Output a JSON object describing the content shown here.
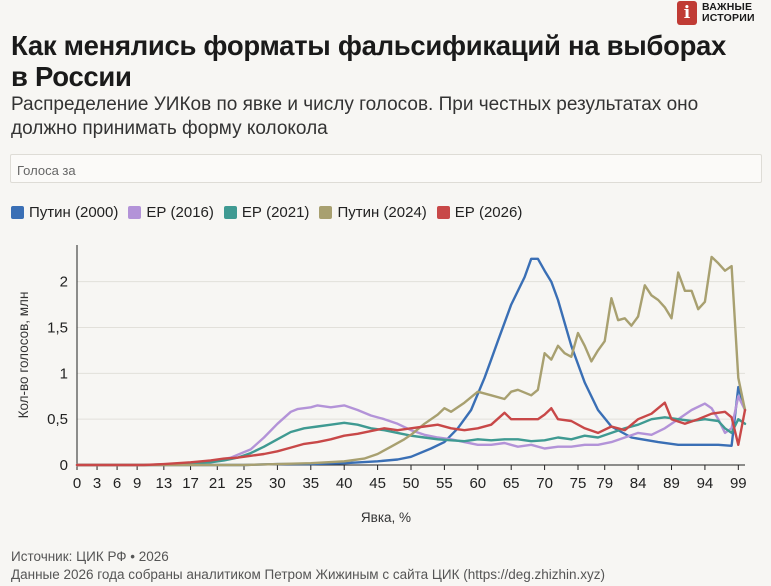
{
  "logo": {
    "mark": "i",
    "line1": "ВАЖНЫЕ",
    "line2": "ИСТОРИИ"
  },
  "title": "Как менялись форматы фальсификаций на выборах в России",
  "subtitle": "Распределение УИКов по явке и числу голосов. При честных результатах оно должно принимать форму колокола",
  "select": {
    "value": "Голоса за"
  },
  "source": {
    "line1": "Источник: ЦИК РФ • 2026",
    "line2": "Данные 2026 года собраны аналитиком Петром Жижиным с сайта ЦИК (https://deg.zhizhin.xyz)"
  },
  "chart_data": {
    "type": "line",
    "title": "",
    "xlabel": "Явка, %",
    "ylabel": "Кол-во голосов, млн",
    "xlim": [
      0,
      100
    ],
    "ylim": [
      0,
      2.4
    ],
    "xticks": [
      0,
      3,
      6,
      9,
      13,
      17,
      21,
      25,
      30,
      35,
      40,
      45,
      50,
      55,
      60,
      65,
      70,
      75,
      79,
      84,
      89,
      94,
      99
    ],
    "xtick_labels": [
      "0",
      "3",
      "6",
      "9",
      "13",
      "17",
      "21",
      "25",
      "30",
      "35",
      "40",
      "45",
      "50",
      "55",
      "60",
      "65",
      "70",
      "75",
      "79",
      "84",
      "89",
      "94",
      "99"
    ],
    "yticks": [
      0,
      0.5,
      1,
      1.5,
      2
    ],
    "ytick_labels": [
      "0",
      "0,5",
      "1",
      "1,5",
      "2"
    ],
    "grid": "horizontal",
    "legend": "top-left",
    "series": [
      {
        "name": "Путин (2000)",
        "color": "#3a6fb5",
        "points": [
          [
            0,
            0
          ],
          [
            10,
            0
          ],
          [
            20,
            0
          ],
          [
            25,
            0
          ],
          [
            30,
            0.01
          ],
          [
            35,
            0.01
          ],
          [
            40,
            0.02
          ],
          [
            45,
            0.04
          ],
          [
            48,
            0.06
          ],
          [
            50,
            0.09
          ],
          [
            53,
            0.18
          ],
          [
            55,
            0.25
          ],
          [
            57,
            0.4
          ],
          [
            59,
            0.6
          ],
          [
            61,
            0.95
          ],
          [
            62,
            1.15
          ],
          [
            63,
            1.35
          ],
          [
            65,
            1.75
          ],
          [
            67,
            2.05
          ],
          [
            68,
            2.25
          ],
          [
            69,
            2.25
          ],
          [
            70,
            2.12
          ],
          [
            71,
            2.0
          ],
          [
            72,
            1.8
          ],
          [
            74,
            1.3
          ],
          [
            76,
            0.9
          ],
          [
            78,
            0.6
          ],
          [
            80,
            0.42
          ],
          [
            83,
            0.3
          ],
          [
            87,
            0.25
          ],
          [
            90,
            0.22
          ],
          [
            93,
            0.22
          ],
          [
            96,
            0.22
          ],
          [
            98,
            0.21
          ],
          [
            99,
            0.85
          ],
          [
            100,
            0.6
          ]
        ]
      },
      {
        "name": "ЕР (2016)",
        "color": "#b393d8",
        "points": [
          [
            0,
            0
          ],
          [
            10,
            0
          ],
          [
            15,
            0.01
          ],
          [
            18,
            0.02
          ],
          [
            20,
            0.04
          ],
          [
            23,
            0.08
          ],
          [
            26,
            0.17
          ],
          [
            28,
            0.3
          ],
          [
            30,
            0.45
          ],
          [
            32,
            0.58
          ],
          [
            33,
            0.61
          ],
          [
            35,
            0.63
          ],
          [
            36,
            0.65
          ],
          [
            38,
            0.63
          ],
          [
            40,
            0.65
          ],
          [
            42,
            0.6
          ],
          [
            44,
            0.54
          ],
          [
            46,
            0.5
          ],
          [
            48,
            0.45
          ],
          [
            50,
            0.38
          ],
          [
            52,
            0.33
          ],
          [
            54,
            0.3
          ],
          [
            56,
            0.28
          ],
          [
            58,
            0.25
          ],
          [
            60,
            0.22
          ],
          [
            62,
            0.22
          ],
          [
            64,
            0.24
          ],
          [
            66,
            0.2
          ],
          [
            68,
            0.22
          ],
          [
            70,
            0.18
          ],
          [
            72,
            0.2
          ],
          [
            74,
            0.2
          ],
          [
            76,
            0.22
          ],
          [
            78,
            0.22
          ],
          [
            80,
            0.25
          ],
          [
            82,
            0.3
          ],
          [
            84,
            0.35
          ],
          [
            86,
            0.33
          ],
          [
            88,
            0.4
          ],
          [
            90,
            0.5
          ],
          [
            92,
            0.6
          ],
          [
            94,
            0.67
          ],
          [
            95,
            0.62
          ],
          [
            96,
            0.5
          ],
          [
            97,
            0.35
          ],
          [
            98,
            0.4
          ],
          [
            99,
            0.75
          ],
          [
            100,
            0.6
          ]
        ]
      },
      {
        "name": "ЕР (2021)",
        "color": "#3f9a92",
        "points": [
          [
            0,
            0
          ],
          [
            10,
            0
          ],
          [
            15,
            0.01
          ],
          [
            18,
            0.02
          ],
          [
            20,
            0.03
          ],
          [
            22,
            0.05
          ],
          [
            24,
            0.08
          ],
          [
            26,
            0.13
          ],
          [
            28,
            0.2
          ],
          [
            30,
            0.28
          ],
          [
            32,
            0.36
          ],
          [
            34,
            0.4
          ],
          [
            36,
            0.42
          ],
          [
            38,
            0.44
          ],
          [
            40,
            0.46
          ],
          [
            42,
            0.44
          ],
          [
            44,
            0.4
          ],
          [
            46,
            0.38
          ],
          [
            48,
            0.35
          ],
          [
            50,
            0.32
          ],
          [
            52,
            0.3
          ],
          [
            54,
            0.28
          ],
          [
            56,
            0.27
          ],
          [
            58,
            0.26
          ],
          [
            60,
            0.28
          ],
          [
            62,
            0.27
          ],
          [
            64,
            0.28
          ],
          [
            66,
            0.28
          ],
          [
            68,
            0.26
          ],
          [
            70,
            0.27
          ],
          [
            72,
            0.3
          ],
          [
            74,
            0.28
          ],
          [
            76,
            0.32
          ],
          [
            78,
            0.3
          ],
          [
            80,
            0.35
          ],
          [
            82,
            0.4
          ],
          [
            84,
            0.44
          ],
          [
            86,
            0.5
          ],
          [
            88,
            0.52
          ],
          [
            90,
            0.5
          ],
          [
            92,
            0.48
          ],
          [
            94,
            0.5
          ],
          [
            96,
            0.48
          ],
          [
            97,
            0.4
          ],
          [
            98,
            0.35
          ],
          [
            99,
            0.5
          ],
          [
            100,
            0.45
          ]
        ]
      },
      {
        "name": "Путин (2024)",
        "color": "#a8a070",
        "points": [
          [
            0,
            0
          ],
          [
            10,
            0
          ],
          [
            20,
            0
          ],
          [
            25,
            0
          ],
          [
            30,
            0.01
          ],
          [
            35,
            0.02
          ],
          [
            40,
            0.04
          ],
          [
            43,
            0.07
          ],
          [
            45,
            0.12
          ],
          [
            47,
            0.2
          ],
          [
            49,
            0.28
          ],
          [
            50,
            0.33
          ],
          [
            52,
            0.45
          ],
          [
            54,
            0.55
          ],
          [
            55,
            0.62
          ],
          [
            56,
            0.58
          ],
          [
            58,
            0.68
          ],
          [
            60,
            0.8
          ],
          [
            62,
            0.76
          ],
          [
            64,
            0.72
          ],
          [
            65,
            0.8
          ],
          [
            66,
            0.82
          ],
          [
            68,
            0.76
          ],
          [
            69,
            0.82
          ],
          [
            70,
            1.22
          ],
          [
            71,
            1.15
          ],
          [
            72,
            1.3
          ],
          [
            73,
            1.22
          ],
          [
            74,
            1.18
          ],
          [
            75,
            1.44
          ],
          [
            76,
            1.3
          ],
          [
            77,
            1.13
          ],
          [
            78,
            1.25
          ],
          [
            79,
            1.35
          ],
          [
            80,
            1.82
          ],
          [
            81,
            1.58
          ],
          [
            82,
            1.6
          ],
          [
            83,
            1.52
          ],
          [
            84,
            1.62
          ],
          [
            85,
            1.96
          ],
          [
            86,
            1.85
          ],
          [
            87,
            1.8
          ],
          [
            88,
            1.72
          ],
          [
            89,
            1.6
          ],
          [
            90,
            2.1
          ],
          [
            91,
            1.9
          ],
          [
            92,
            1.9
          ],
          [
            93,
            1.7
          ],
          [
            94,
            1.78
          ],
          [
            95,
            2.27
          ],
          [
            96,
            2.2
          ],
          [
            97,
            2.12
          ],
          [
            98,
            2.17
          ],
          [
            99,
            0.95
          ],
          [
            100,
            0.6
          ]
        ]
      },
      {
        "name": "ЕР (2026)",
        "color": "#c84848",
        "points": [
          [
            0,
            0
          ],
          [
            10,
            0
          ],
          [
            13,
            0.01
          ],
          [
            15,
            0.02
          ],
          [
            17,
            0.03
          ],
          [
            20,
            0.05
          ],
          [
            22,
            0.07
          ],
          [
            24,
            0.08
          ],
          [
            26,
            0.1
          ],
          [
            28,
            0.12
          ],
          [
            30,
            0.15
          ],
          [
            32,
            0.19
          ],
          [
            34,
            0.23
          ],
          [
            36,
            0.25
          ],
          [
            38,
            0.28
          ],
          [
            40,
            0.32
          ],
          [
            42,
            0.34
          ],
          [
            44,
            0.37
          ],
          [
            46,
            0.4
          ],
          [
            48,
            0.38
          ],
          [
            50,
            0.4
          ],
          [
            52,
            0.42
          ],
          [
            54,
            0.44
          ],
          [
            56,
            0.4
          ],
          [
            58,
            0.38
          ],
          [
            60,
            0.4
          ],
          [
            62,
            0.44
          ],
          [
            64,
            0.57
          ],
          [
            65,
            0.5
          ],
          [
            67,
            0.5
          ],
          [
            69,
            0.5
          ],
          [
            70,
            0.55
          ],
          [
            71,
            0.62
          ],
          [
            72,
            0.5
          ],
          [
            74,
            0.48
          ],
          [
            76,
            0.4
          ],
          [
            78,
            0.35
          ],
          [
            80,
            0.42
          ],
          [
            82,
            0.38
          ],
          [
            84,
            0.5
          ],
          [
            86,
            0.56
          ],
          [
            88,
            0.68
          ],
          [
            89,
            0.5
          ],
          [
            91,
            0.45
          ],
          [
            93,
            0.5
          ],
          [
            95,
            0.56
          ],
          [
            97,
            0.58
          ],
          [
            98,
            0.52
          ],
          [
            99,
            0.22
          ],
          [
            100,
            0.6
          ]
        ]
      }
    ]
  }
}
